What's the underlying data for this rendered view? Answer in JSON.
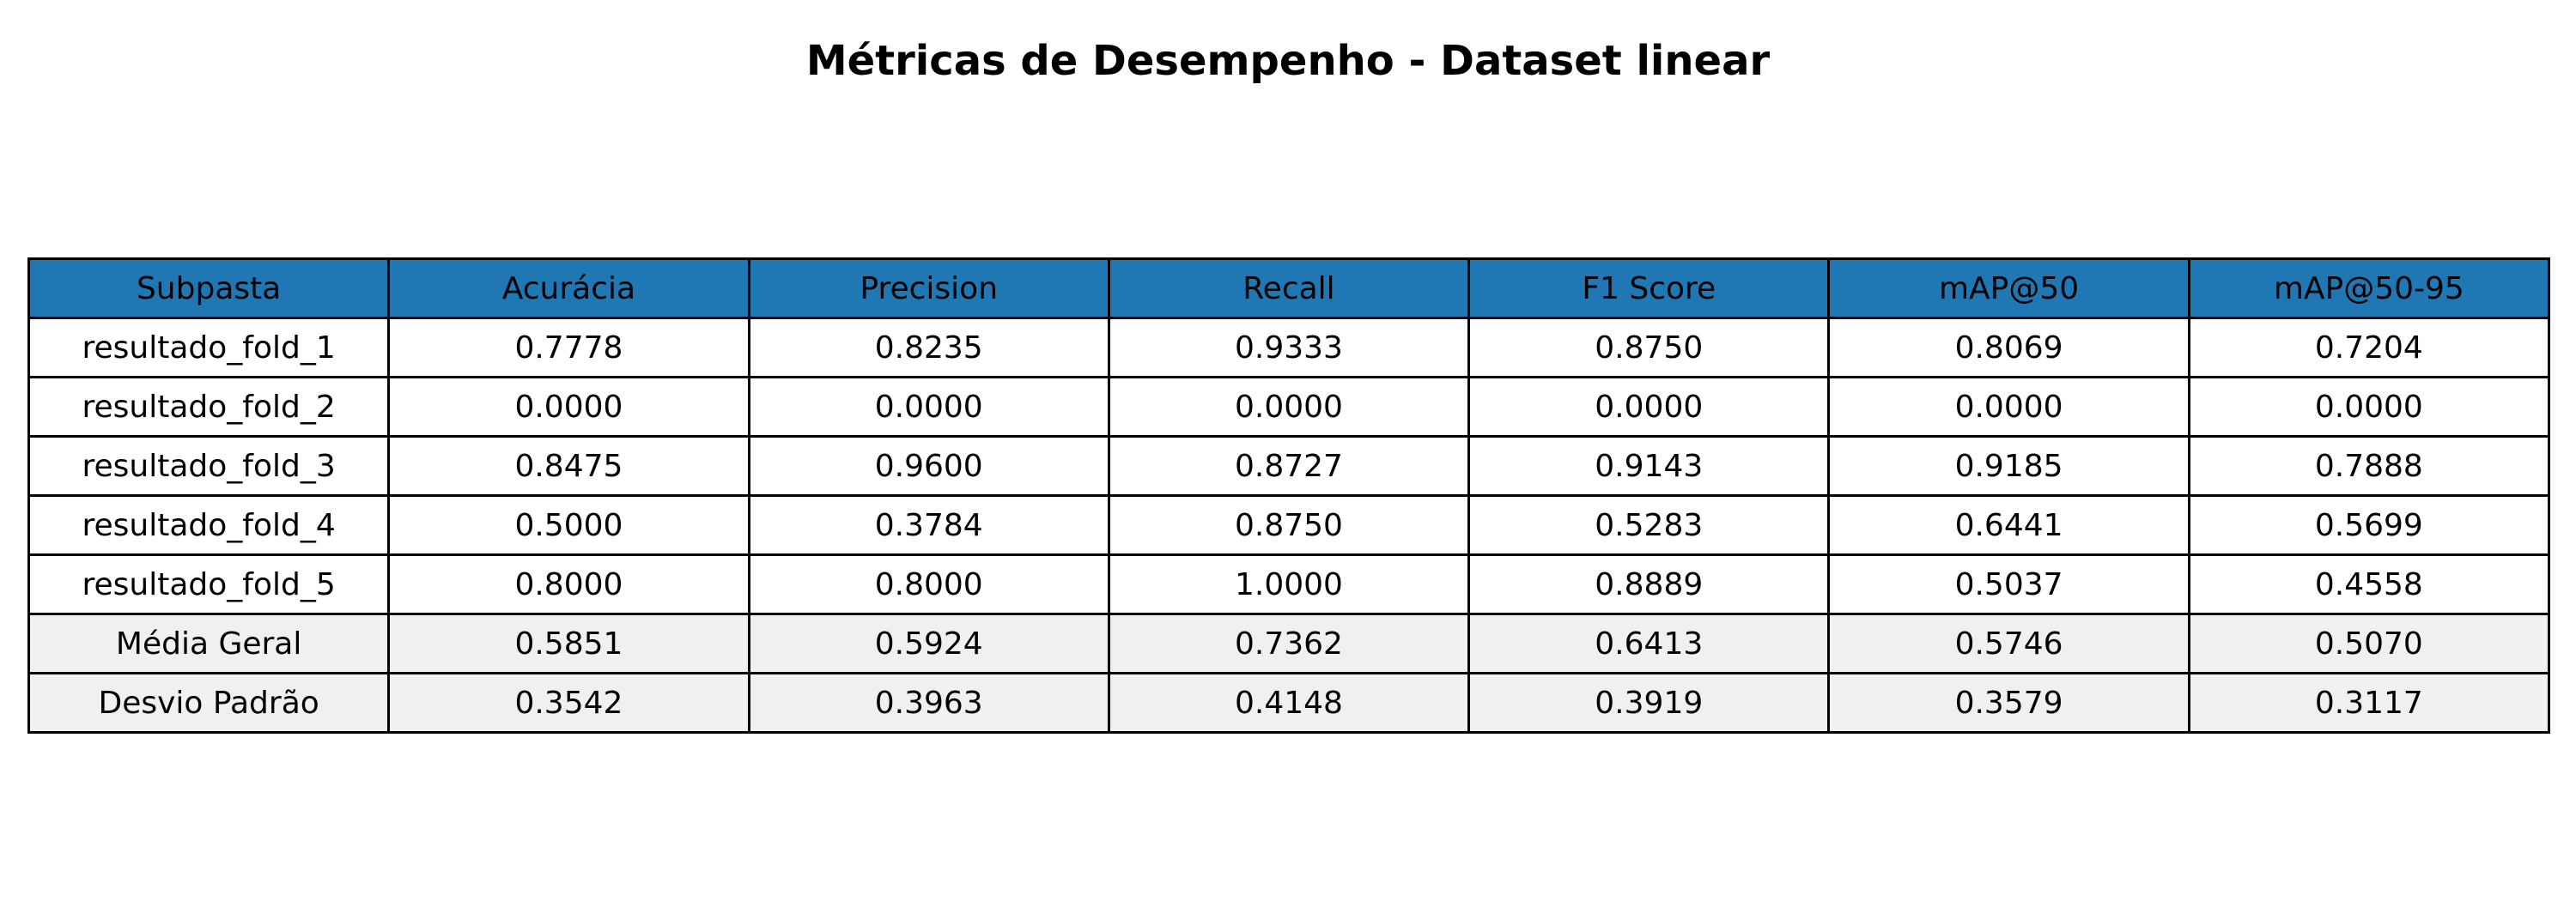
{
  "title": "Métricas de Desempenho - Dataset linear",
  "colors": {
    "header_bg": "#1f77b4",
    "summary_bg": "#f0f0f0",
    "cell_bg": "#ffffff",
    "border": "#000000"
  },
  "chart_data": {
    "type": "table",
    "title": "Métricas de Desempenho - Dataset linear",
    "columns": [
      "Subpasta",
      "Acurácia",
      "Precision",
      "Recall",
      "F1 Score",
      "mAP@50",
      "mAP@50-95"
    ],
    "rows": [
      [
        "resultado_fold_1",
        "0.7778",
        "0.8235",
        "0.9333",
        "0.8750",
        "0.8069",
        "0.7204"
      ],
      [
        "resultado_fold_2",
        "0.0000",
        "0.0000",
        "0.0000",
        "0.0000",
        "0.0000",
        "0.0000"
      ],
      [
        "resultado_fold_3",
        "0.8475",
        "0.9600",
        "0.8727",
        "0.9143",
        "0.9185",
        "0.7888"
      ],
      [
        "resultado_fold_4",
        "0.5000",
        "0.3784",
        "0.8750",
        "0.5283",
        "0.6441",
        "0.5699"
      ],
      [
        "resultado_fold_5",
        "0.8000",
        "0.8000",
        "1.0000",
        "0.8889",
        "0.5037",
        "0.4558"
      ],
      [
        "Média Geral",
        "0.5851",
        "0.5924",
        "0.7362",
        "0.6413",
        "0.5746",
        "0.5070"
      ],
      [
        "Desvio Padrão",
        "0.3542",
        "0.3963",
        "0.4148",
        "0.3919",
        "0.3579",
        "0.3117"
      ]
    ]
  }
}
